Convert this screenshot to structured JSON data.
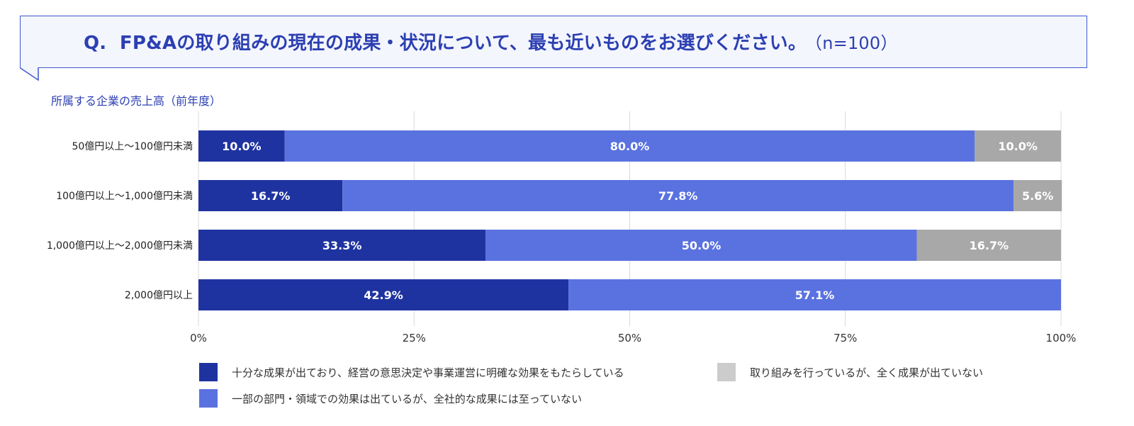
{
  "question": {
    "prefix": "Q.",
    "text": "FP&Aの取り組みの現在の成果・状況について、最も近いものをお選びください。",
    "n": "（n=100）"
  },
  "subtitle": "所属する企業の売上高（前年度）",
  "colors": {
    "series1": "#1f33a0",
    "series2": "#5a72e0",
    "series3": "#a8a8a8",
    "accent": "#3f57cf"
  },
  "chart_data": {
    "type": "bar",
    "orientation": "horizontal",
    "stacked": true,
    "categories": [
      "50億円以上〜100億円未満",
      "100億円以上〜1,000億円未満",
      "1,000億円以上〜2,000億円未満",
      "2,000億円以上"
    ],
    "series": [
      {
        "name": "十分な成果が出ており、経営の意思決定や事業運営に明確な効果をもたらしている",
        "values": [
          10.0,
          16.7,
          33.3,
          42.9
        ],
        "labels": [
          "10.0%",
          "16.7%",
          "33.3%",
          "42.9%"
        ]
      },
      {
        "name": "一部の部門・領域での効果は出ているが、全社的な成果には至っていない",
        "values": [
          80.0,
          77.8,
          50.0,
          57.1
        ],
        "labels": [
          "80.0%",
          "77.8%",
          "50.0%",
          "57.1%"
        ]
      },
      {
        "name": "取り組みを行っているが、全く成果が出ていない",
        "values": [
          10.0,
          5.6,
          16.7,
          0
        ],
        "labels": [
          "10.0%",
          "5.6%",
          "16.7%",
          ""
        ]
      }
    ],
    "xlim": [
      0,
      100
    ],
    "xticks": [
      "0%",
      "25%",
      "50%",
      "75%",
      "100%"
    ],
    "grid": true,
    "legend_position": "bottom"
  }
}
